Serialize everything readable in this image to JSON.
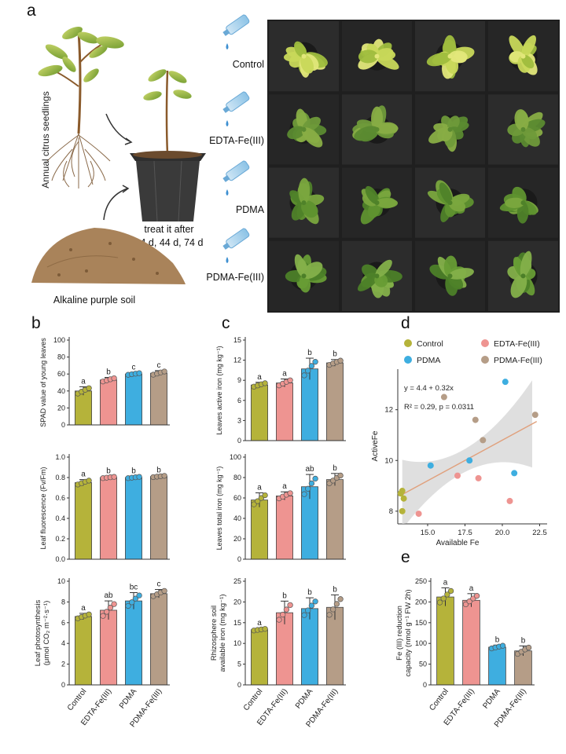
{
  "panel_a": {
    "letter": "a",
    "seedlings_label": "Annual citrus seedlings",
    "treat_label_1": "treat it after",
    "treat_label_2": "14 d, 44 d, 74 d",
    "soil_label": "Alkaline purple soil",
    "treatments": [
      "Control",
      "EDTA-Fe(III)",
      "PDMA",
      "PDMA-Fe(III)"
    ]
  },
  "groups": [
    "Control",
    "EDTA-Fe(III)",
    "PDMA",
    "PDMA-Fe(III)"
  ],
  "colors": {
    "Control": "#b5b33a",
    "EDTA-Fe(III)": "#ee9491",
    "PDMA": "#3eaee0",
    "PDMA-Fe(III)": "#b59d87",
    "fit_line": "#e0a07c",
    "ci_band": "#d9d9d9"
  },
  "panel_letters": {
    "b": "b",
    "c": "c",
    "d": "d",
    "e": "e"
  },
  "chart_data": [
    {
      "id": "b1",
      "type": "bar",
      "ylabel": "SPAD value of young leaves",
      "ylim": [
        0,
        100
      ],
      "yticks": [
        0,
        20,
        40,
        60,
        80,
        100
      ],
      "values": [
        40,
        53,
        60,
        61
      ],
      "errors": [
        5,
        3,
        1.5,
        3
      ],
      "letters": [
        "a",
        "b",
        "c",
        "c"
      ]
    },
    {
      "id": "b2",
      "type": "bar",
      "ylabel": "Leaf fluorescence (Fv/Fm)",
      "ylim": [
        0,
        1.0
      ],
      "yticks": [
        "0.0",
        "0.2",
        "0.4",
        "0.6",
        "0.8",
        "1.0"
      ],
      "values": [
        0.75,
        0.8,
        0.8,
        0.81
      ],
      "errors": [
        0.03,
        0.01,
        0.01,
        0.01
      ],
      "letters": [
        "a",
        "b",
        "b",
        "b"
      ]
    },
    {
      "id": "b3",
      "type": "bar",
      "ylabel": [
        "Leaf photosynthesis",
        "(μmol CO₂ m⁻²·s⁻¹)"
      ],
      "ylim": [
        0,
        10
      ],
      "yticks": [
        0,
        2,
        4,
        6,
        8,
        10
      ],
      "values": [
        6.6,
        7.2,
        8.1,
        8.8
      ],
      "errors": [
        0.3,
        0.9,
        0.8,
        0.4
      ],
      "letters": [
        "a",
        "ab",
        "bc",
        "c"
      ]
    },
    {
      "id": "c1",
      "type": "bar",
      "ylabel": "Leaves active iron (mg kg⁻¹)",
      "ylim": [
        0,
        15
      ],
      "yticks": [
        0,
        3,
        6,
        9,
        12,
        15
      ],
      "values": [
        8.3,
        8.6,
        10.7,
        11.6
      ],
      "errors": [
        0.4,
        0.6,
        1.6,
        0.5
      ],
      "letters": [
        "a",
        "a",
        "b",
        "b"
      ]
    },
    {
      "id": "c2",
      "type": "bar",
      "ylabel": "Leaves total iron (mg kg⁻¹)",
      "ylim": [
        0,
        100
      ],
      "yticks": [
        0,
        20,
        40,
        60,
        80,
        100
      ],
      "values": [
        58,
        62,
        71,
        78
      ],
      "errors": [
        7,
        4,
        12,
        6
      ],
      "letters": [
        "a",
        "a",
        "ab",
        "b"
      ]
    },
    {
      "id": "c3",
      "type": "bar",
      "ylabel": [
        "Rhizosphere soil",
        "available iron (mg kg⁻¹)"
      ],
      "ylim": [
        0,
        25
      ],
      "yticks": [
        0,
        5,
        10,
        15,
        20,
        25
      ],
      "values": [
        13.3,
        17.4,
        18.4,
        18.7
      ],
      "errors": [
        0.3,
        2.8,
        2.6,
        3.0
      ],
      "letters": [
        "a",
        "b",
        "b",
        "b"
      ]
    },
    {
      "id": "d",
      "type": "scatter",
      "xlabel": "Available Fe",
      "ylabel": "ActiveFe",
      "xlim": [
        13,
        23
      ],
      "ylim": [
        7.5,
        13.6
      ],
      "xticks": [
        "15.0",
        "17.5",
        "20.0",
        "22.5"
      ],
      "yticks": [
        8,
        10,
        12
      ],
      "equation": "y = 4.4 + 0.32x",
      "stats": "R² = 0.29, p = 0.0311",
      "fit": {
        "intercept": 4.4,
        "slope": 0.32
      },
      "legend": [
        "Control",
        "EDTA-Fe(III)",
        "PDMA",
        "PDMA-Fe(III)"
      ],
      "points": [
        {
          "g": "Control",
          "x": 13.3,
          "y": 8.0
        },
        {
          "g": "Control",
          "x": 13.4,
          "y": 8.5
        },
        {
          "g": "Control",
          "x": 13.2,
          "y": 8.7
        },
        {
          "g": "Control",
          "x": 13.3,
          "y": 8.8
        },
        {
          "g": "EDTA-Fe(III)",
          "x": 14.4,
          "y": 7.9
        },
        {
          "g": "EDTA-Fe(III)",
          "x": 17.0,
          "y": 9.4
        },
        {
          "g": "EDTA-Fe(III)",
          "x": 18.4,
          "y": 9.3
        },
        {
          "g": "EDTA-Fe(III)",
          "x": 20.5,
          "y": 8.4
        },
        {
          "g": "PDMA",
          "x": 15.2,
          "y": 9.8
        },
        {
          "g": "PDMA",
          "x": 17.8,
          "y": 10.0
        },
        {
          "g": "PDMA",
          "x": 20.2,
          "y": 13.1
        },
        {
          "g": "PDMA",
          "x": 20.8,
          "y": 9.5
        },
        {
          "g": "PDMA-Fe(III)",
          "x": 16.1,
          "y": 12.5
        },
        {
          "g": "PDMA-Fe(III)",
          "x": 18.2,
          "y": 11.6
        },
        {
          "g": "PDMA-Fe(III)",
          "x": 18.7,
          "y": 10.8
        },
        {
          "g": "PDMA-Fe(III)",
          "x": 22.2,
          "y": 11.8
        }
      ]
    },
    {
      "id": "e",
      "type": "bar",
      "ylabel": [
        "Fe (III) reduction",
        "capacity (nmol g⁻¹ FW 2h)"
      ],
      "ylim": [
        0,
        250
      ],
      "yticks": [
        0,
        50,
        100,
        150,
        200,
        250
      ],
      "values": [
        212,
        204,
        91,
        82
      ],
      "errors": [
        22,
        16,
        5,
        12
      ],
      "letters": [
        "a",
        "a",
        "b",
        "b"
      ]
    }
  ]
}
